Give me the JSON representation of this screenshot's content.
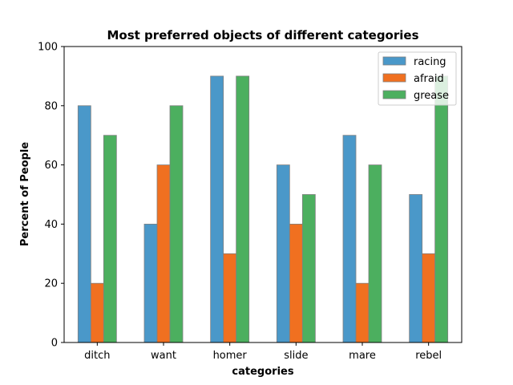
{
  "chart_data": {
    "type": "bar",
    "title": "Most preferred objects of different categories",
    "xlabel": "categories",
    "ylabel": "Percent of People",
    "categories": [
      "ditch",
      "want",
      "homer",
      "slide",
      "mare",
      "rebel"
    ],
    "series": [
      {
        "name": "racing",
        "values": [
          80,
          40,
          90,
          60,
          70,
          50
        ],
        "color": "#4a98c9"
      },
      {
        "name": "afraid",
        "values": [
          20,
          60,
          30,
          40,
          20,
          30
        ],
        "color": "#f07020"
      },
      {
        "name": "grease",
        "values": [
          70,
          80,
          90,
          50,
          60,
          90
        ],
        "color": "#4caf5f"
      }
    ],
    "ylim": [
      0,
      100
    ],
    "yticks": [
      0,
      20,
      40,
      60,
      80,
      100
    ],
    "grid": false,
    "legend_position": "top-right"
  }
}
